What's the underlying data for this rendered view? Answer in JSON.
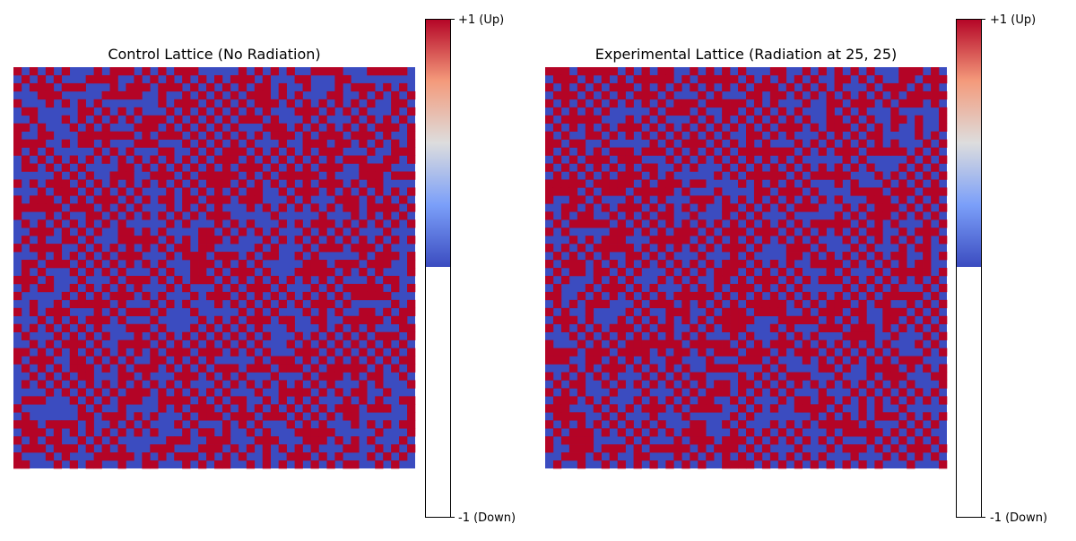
{
  "chart_data": [
    {
      "type": "heatmap",
      "title": "Control Lattice (No Radiation)",
      "grid_size": 50,
      "value_range": [
        -1,
        1
      ],
      "colormap": [
        "#3b4cc0",
        "#b40426"
      ],
      "colorbar": {
        "ticks": [
          {
            "value": 1,
            "label": "+1 (Up)"
          },
          {
            "value": -1,
            "label": "-1 (Down)"
          }
        ]
      },
      "pattern": "checkerboard-with-noise",
      "seed": 17
    },
    {
      "type": "heatmap",
      "title": "Experimental Lattice (Radiation at 25, 25)",
      "grid_size": 50,
      "value_range": [
        -1,
        1
      ],
      "colormap": [
        "#3b4cc0",
        "#b40426"
      ],
      "colorbar": {
        "ticks": [
          {
            "value": 1,
            "label": "+1 (Up)"
          },
          {
            "value": -1,
            "label": "-1 (Down)"
          }
        ]
      },
      "pattern": "checkerboard-with-noise",
      "seed": 42
    }
  ]
}
